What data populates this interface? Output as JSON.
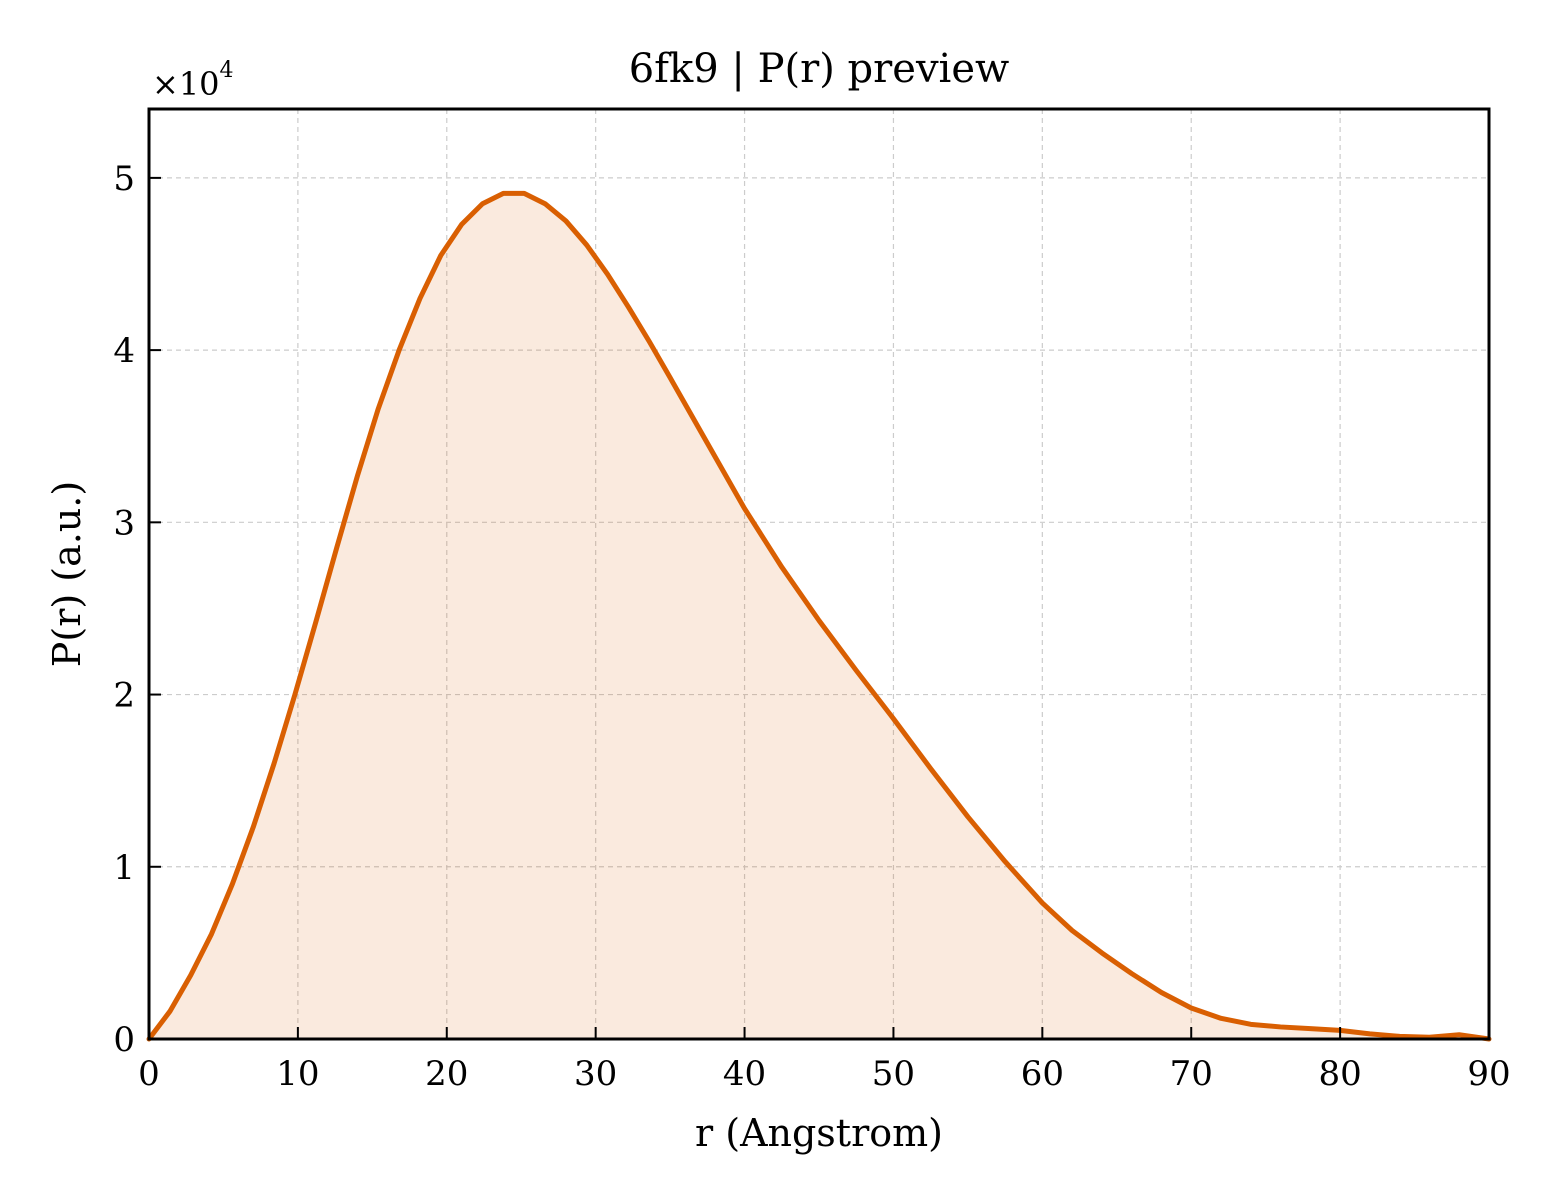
{
  "chart_data": {
    "type": "area",
    "title": "6fk9 | P(r) preview",
    "xlabel": "r (Angstrom)",
    "ylabel": "P(r) (a.u.)",
    "y_multiplier_base": "×10",
    "y_multiplier_exp": "4",
    "xlim": [
      0,
      90
    ],
    "ylim": [
      0,
      5.4
    ],
    "xticks": [
      0,
      10,
      20,
      30,
      40,
      50,
      60,
      70,
      80,
      90
    ],
    "xtick_labels": [
      "0",
      "10",
      "20",
      "30",
      "40",
      "50",
      "60",
      "70",
      "80",
      "90"
    ],
    "yticks": [
      0,
      1,
      2,
      3,
      4,
      5
    ],
    "ytick_labels": [
      "0",
      "1",
      "2",
      "3",
      "4",
      "5"
    ],
    "grid": true,
    "line_color": "#d95f02",
    "fill_color": "#d95f02",
    "fill_opacity": 0.13,
    "series": [
      {
        "x": [
          0,
          1.4,
          2.8,
          4.2,
          5.6,
          7.0,
          8.4,
          9.8,
          11.2,
          12.6,
          14.0,
          15.4,
          16.8,
          18.2,
          19.6,
          21.0,
          22.4,
          23.8,
          25.2,
          26.6,
          28.0,
          29.4,
          30.8,
          32.2,
          33.6,
          35.0,
          37.5,
          40.0,
          42.5,
          45.0,
          47.5,
          50.0,
          52.5,
          55.0,
          57.5,
          60.0,
          62.0,
          64.0,
          66.0,
          68.0,
          70.0,
          72.0,
          74.0,
          76.0,
          78.0,
          80.0,
          82.0,
          84.0,
          86.0,
          88.0,
          90.0
        ],
        "y": [
          0.0,
          0.16,
          0.37,
          0.61,
          0.9,
          1.23,
          1.6,
          2.0,
          2.42,
          2.85,
          3.27,
          3.66,
          4.0,
          4.3,
          4.55,
          4.73,
          4.85,
          4.91,
          4.91,
          4.85,
          4.75,
          4.61,
          4.44,
          4.25,
          4.05,
          3.84,
          3.46,
          3.08,
          2.74,
          2.43,
          2.14,
          1.86,
          1.57,
          1.29,
          1.03,
          0.79,
          0.63,
          0.5,
          0.38,
          0.27,
          0.18,
          0.12,
          0.085,
          0.07,
          0.06,
          0.05,
          0.03,
          0.015,
          0.01,
          0.025,
          0.0
        ]
      }
    ]
  }
}
